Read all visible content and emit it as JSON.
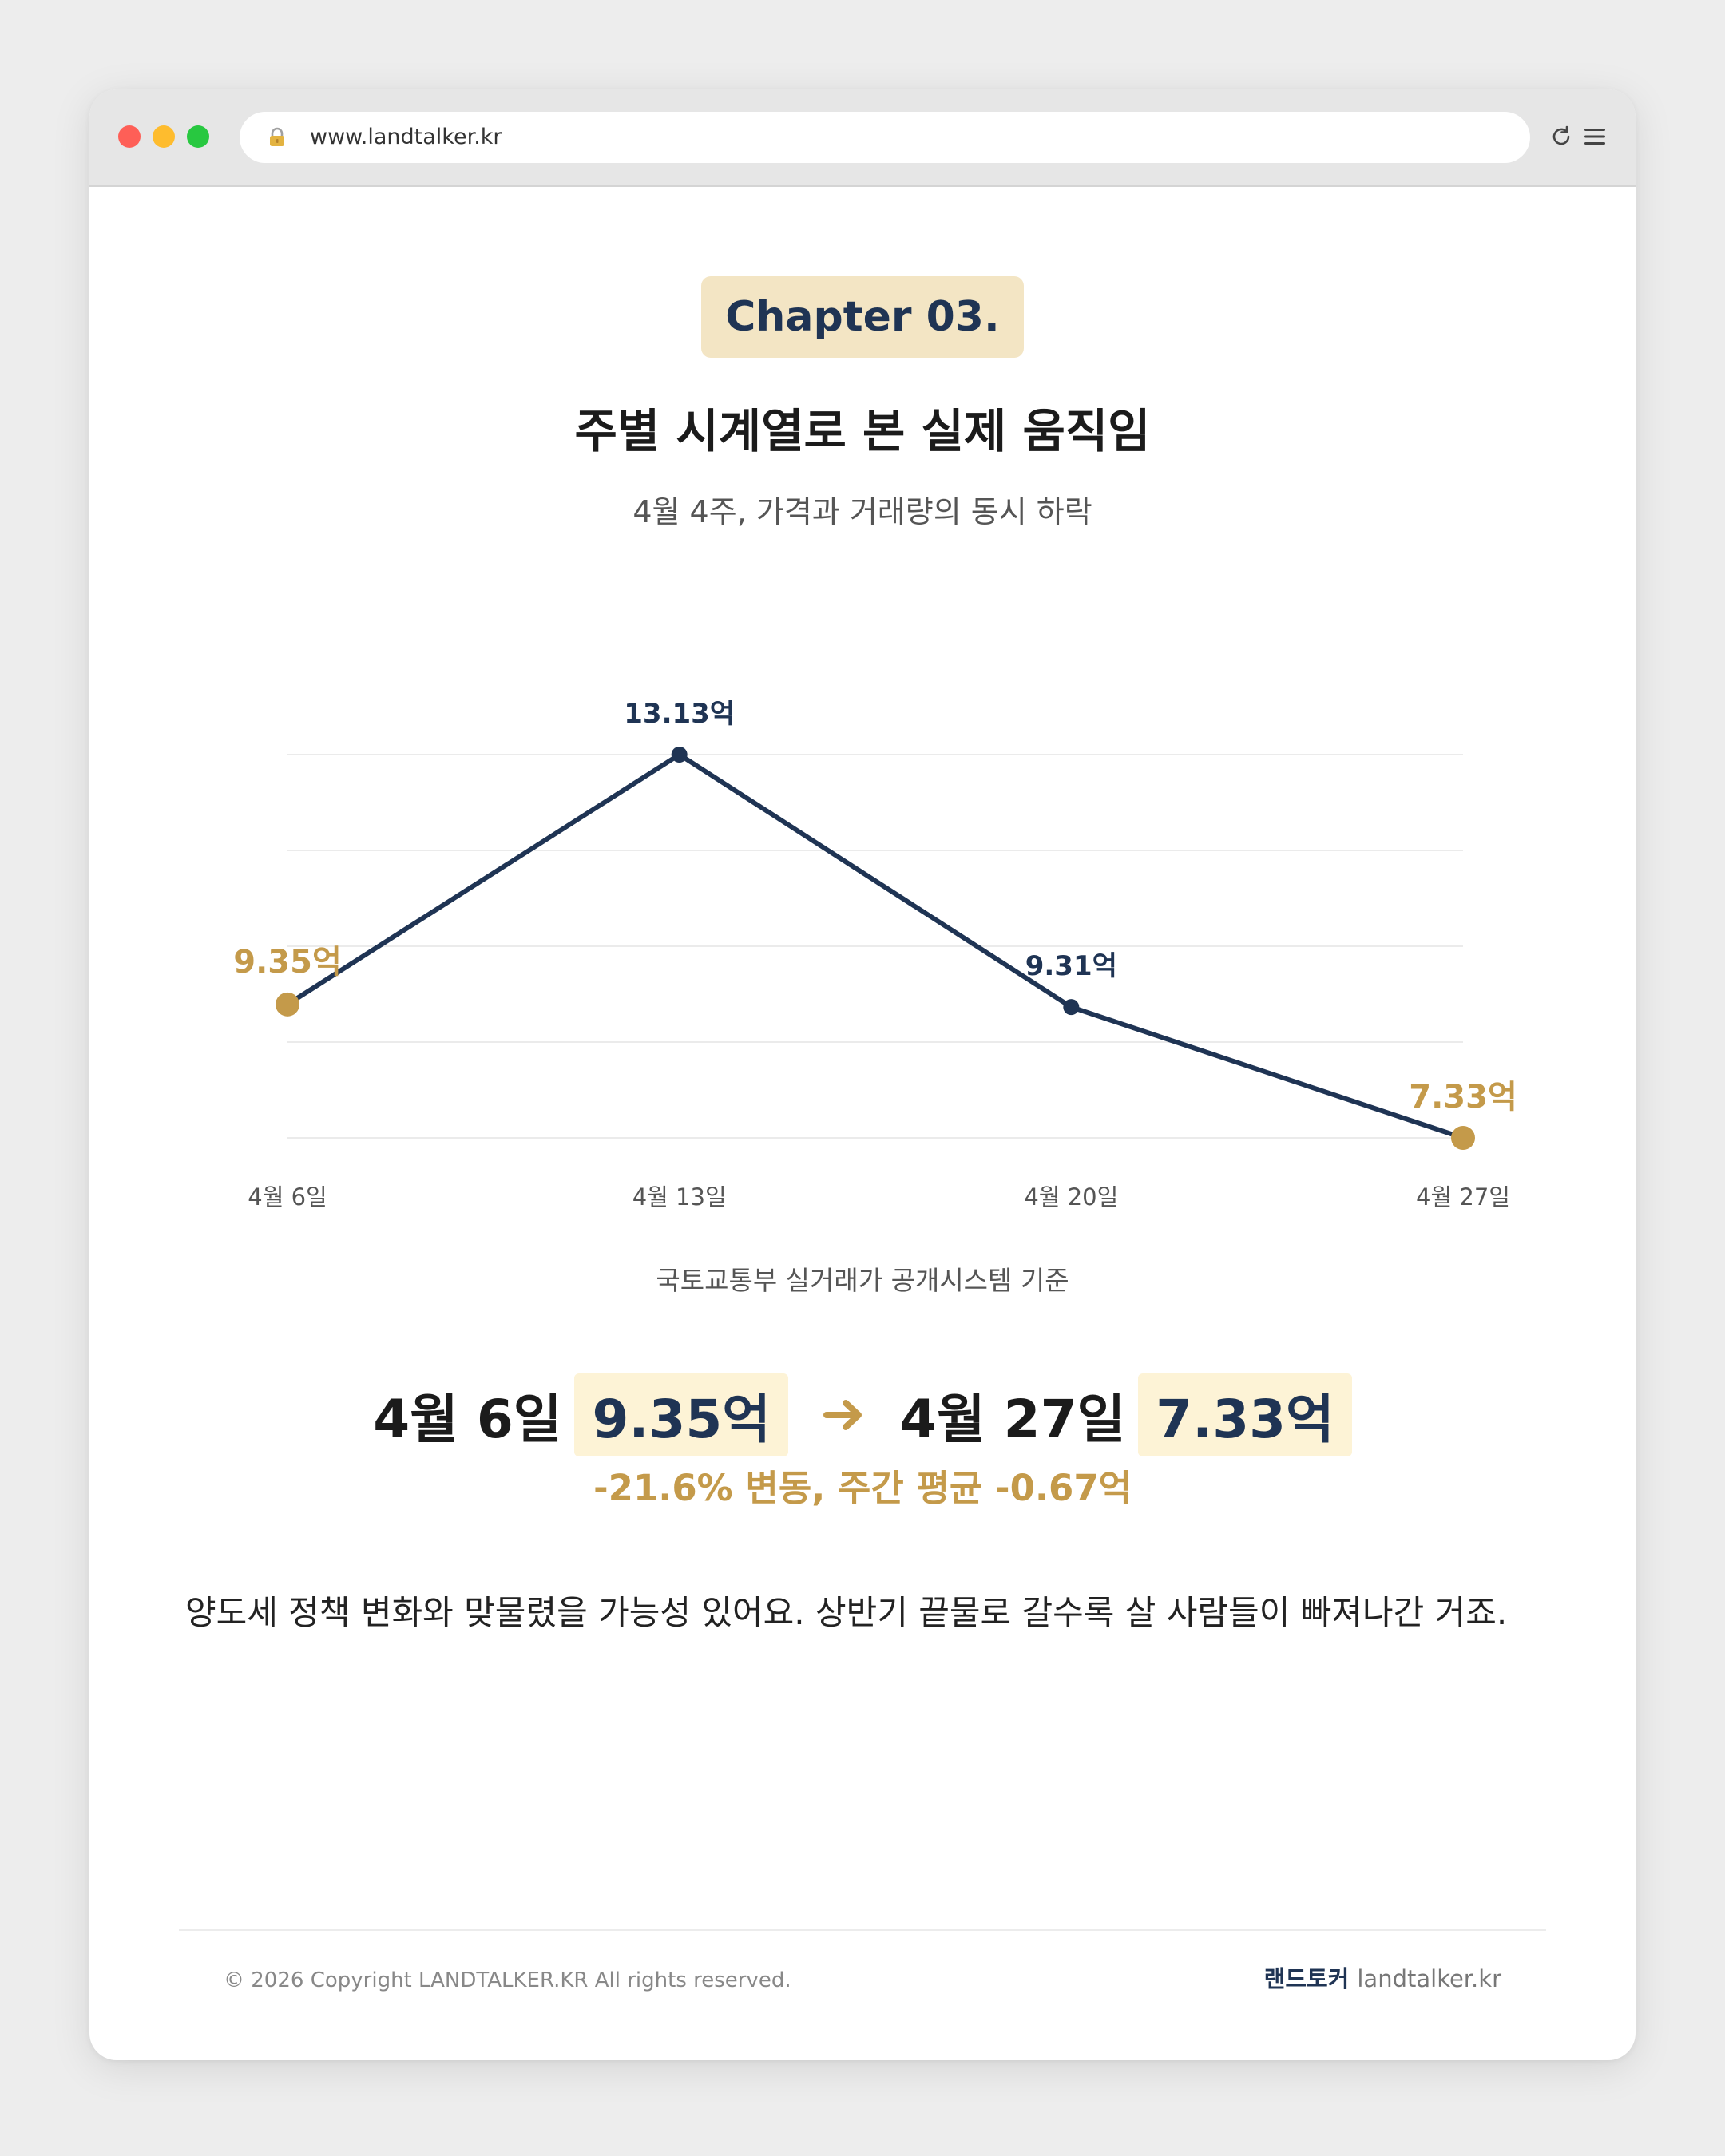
{
  "browser": {
    "url": "www.landtalker.kr"
  },
  "page": {
    "chapter": "Chapter 03.",
    "title": "주별 시계열로 본 실제 움직임",
    "subtitle": "4월 4주, 가격과 거래량의 동시 하락",
    "source": "국토교통부 실거래가 공개시스템 기준"
  },
  "chart_data": {
    "type": "line",
    "categories": [
      "4월 6일",
      "4월 13일",
      "4월 20일",
      "4월 27일"
    ],
    "values": [
      9.35,
      13.13,
      9.31,
      7.33
    ],
    "labels": [
      "9.35억",
      "13.13억",
      "9.31억",
      "7.33억"
    ],
    "highlight": [
      true,
      false,
      false,
      true
    ],
    "ylim": [
      7.33,
      13.13
    ],
    "grid": true,
    "line_color": "#1f3454",
    "highlight_color": "#c49a4a"
  },
  "comparison": {
    "start_date": "4월 6일",
    "start_value": "9.35억",
    "end_date": "4월 27일",
    "end_value": "7.33억",
    "change": "-21.6% 변동, 주간 평균 -0.67억"
  },
  "body": {
    "text": "양도세 정책 변화와 맞물렸을 가능성 있어요. 상반기 끝물로 갈수록 살 사람들이 빠져나간 거죠."
  },
  "footer": {
    "copyright": "© 2026 Copyright LANDTALKER.KR All rights reserved.",
    "brand": "랜드토커",
    "brand_url": "landtalker.kr"
  },
  "colors": {
    "navy": "#1f3454",
    "gold": "#c49a4a",
    "badge_bg": "#f3e5c4",
    "value_highlight_bg": "#fdf3d6"
  }
}
